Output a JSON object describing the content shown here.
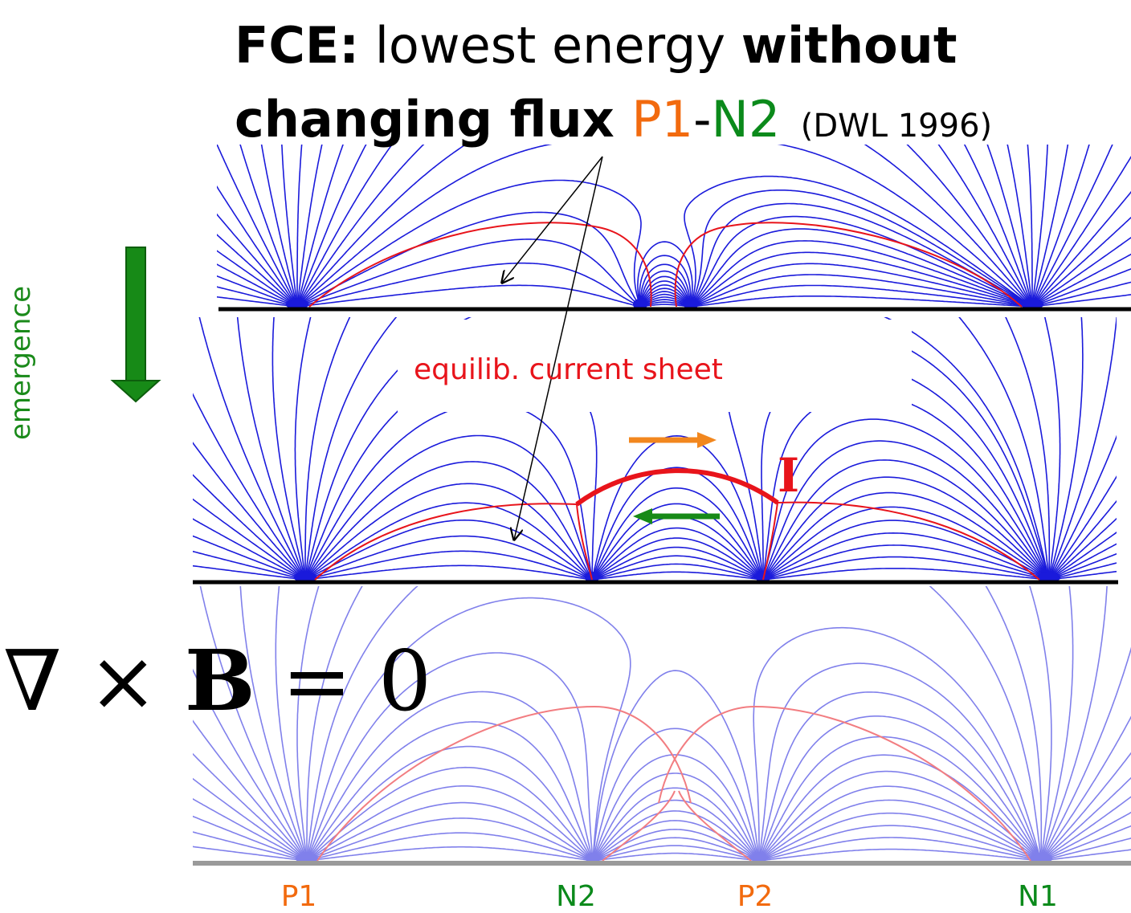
{
  "title": {
    "line1_bold": "FCE:",
    "line1_normal": " lowest energy ",
    "line1_bold2": "without",
    "line2_bold": "changing flux ",
    "p1": "P1",
    "dash": "-",
    "n2": "N2",
    "ref": "(DWL 1996)"
  },
  "labels": {
    "emergence": "emergence",
    "current_sheet": "equilib. current sheet",
    "current": "I",
    "curl_nabla": "∇ × ",
    "curl_B": "B",
    "curl_rest": " = 0"
  },
  "sources": [
    {
      "name": "P1",
      "color": "#f26a0e"
    },
    {
      "name": "N2",
      "color": "#0b8a1b"
    },
    {
      "name": "P2",
      "color": "#f26a0e"
    },
    {
      "name": "N1",
      "color": "#0b8a1b"
    }
  ],
  "colors": {
    "field_line": "#1a1adb",
    "separatrix": "#e8141b",
    "faded_field": "#8c96ee",
    "faded_separatrix": "#f0948c",
    "emergence_arrow": "#178a17",
    "flow_orange": "#f2871e",
    "flow_green": "#178a17"
  }
}
